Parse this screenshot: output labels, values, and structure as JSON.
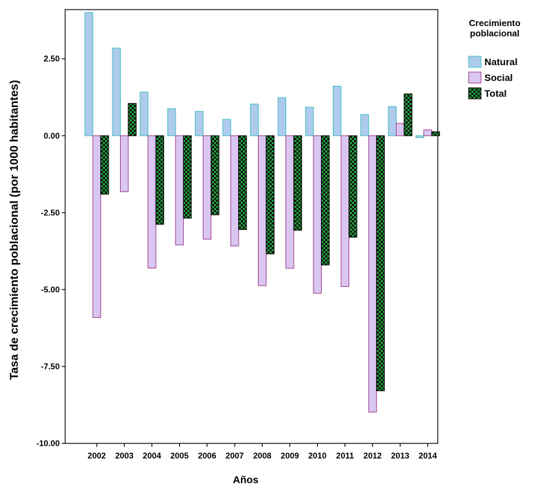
{
  "chart_data": {
    "type": "bar",
    "title": "",
    "xlabel": "Años",
    "ylabel": "Tasa de crecimiento poblacional (por 1000 habitantes)",
    "ylim": [
      -10,
      4.1
    ],
    "yticks": [
      -10,
      -7.5,
      -5,
      -2.5,
      0,
      2.5
    ],
    "ytick_labels": [
      "-10.00",
      "-7.50",
      "-5.00",
      "-2.50",
      "0.00",
      "2.50"
    ],
    "grid": false,
    "legend_position": "right",
    "legend_title": [
      "Crecimiento",
      "poblacional"
    ],
    "categories": [
      "2002",
      "2003",
      "2004",
      "2005",
      "2006",
      "2007",
      "2008",
      "2009",
      "2010",
      "2011",
      "2012",
      "2013",
      "2014"
    ],
    "series": [
      {
        "name": "Natural",
        "color": "#aecbee",
        "stroke": "#3fbfbf",
        "pattern": "solid",
        "values": [
          4.0,
          2.85,
          1.42,
          0.88,
          0.79,
          0.53,
          1.03,
          1.24,
          0.93,
          1.61,
          0.69,
          0.95,
          -0.06
        ]
      },
      {
        "name": "Social",
        "color": "#d9c7f2",
        "stroke": "#a03c8c",
        "pattern": "solid",
        "values": [
          -5.91,
          -1.82,
          -4.3,
          -3.55,
          -3.36,
          -3.58,
          -4.87,
          -4.31,
          -5.12,
          -4.9,
          -8.98,
          0.4,
          0.19
        ]
      },
      {
        "name": "Total",
        "color": "#1a9e3a",
        "stroke": "#000000",
        "pattern": "checker",
        "values": [
          -1.9,
          1.05,
          -2.88,
          -2.68,
          -2.57,
          -3.05,
          -3.84,
          -3.07,
          -4.2,
          -3.3,
          -8.29,
          1.36,
          0.13
        ]
      }
    ]
  }
}
